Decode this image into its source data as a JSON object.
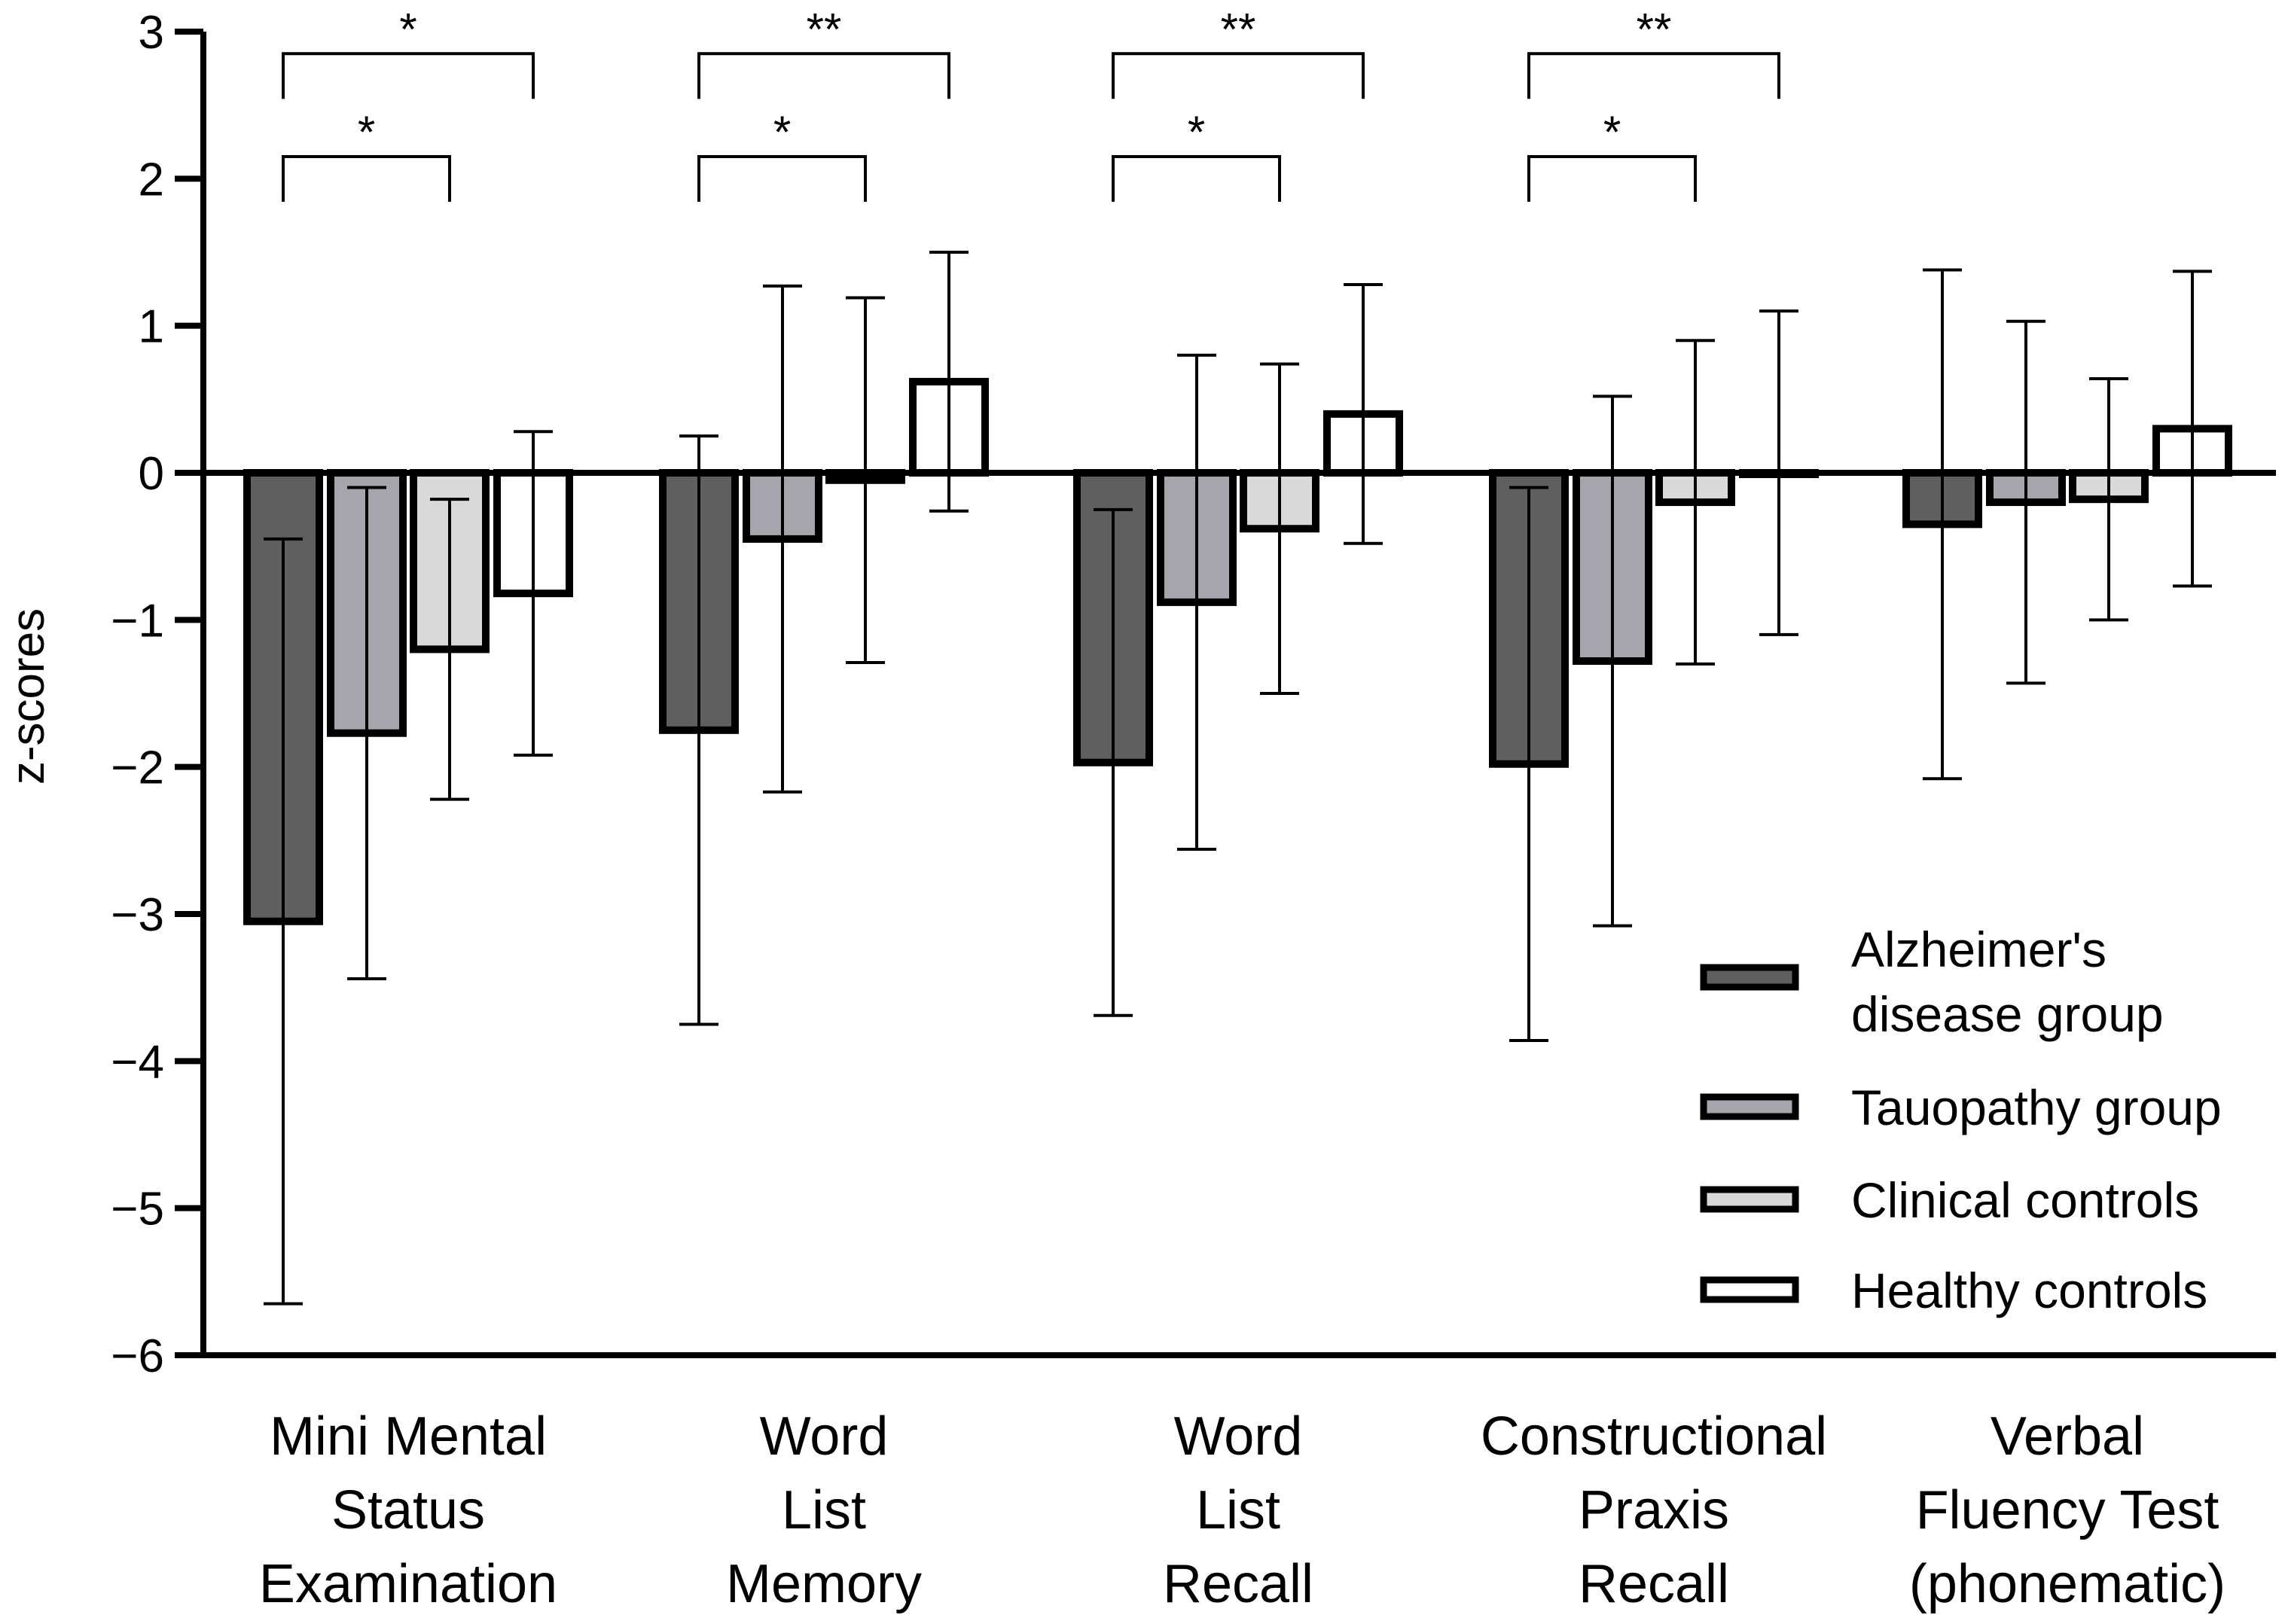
{
  "chart_data": {
    "type": "bar",
    "title": "",
    "xlabel": "",
    "ylabel": "z-scores",
    "ylim": [
      -6,
      3
    ],
    "yticks": [
      3,
      2,
      1,
      0,
      -1,
      -2,
      -3,
      -4,
      -5,
      -6
    ],
    "ytick_labels": [
      "3",
      "2",
      "1",
      "0",
      "−1",
      "−2",
      "−3",
      "−4",
      "−5",
      "−6"
    ],
    "categories": [
      [
        "Mini Mental",
        "Status",
        "Examination"
      ],
      [
        "Word",
        "List",
        "Memory"
      ],
      [
        "Word",
        "List",
        "Recall"
      ],
      [
        "Constructional",
        "Praxis",
        "Recall"
      ],
      [
        "Verbal",
        "Fluency Test",
        "(phonematic)"
      ]
    ],
    "series": [
      {
        "name": "Alzheimer's disease group",
        "legend_lines": [
          "Alzheimer's",
          "disease group"
        ],
        "color": "#5f5f5f",
        "values": [
          -3.05,
          -1.75,
          -1.97,
          -1.98,
          -0.35
        ],
        "error": [
          2.6,
          2.0,
          1.72,
          1.88,
          1.73
        ]
      },
      {
        "name": "Tauopathy group",
        "legend_lines": [
          "Tauopathy group"
        ],
        "color": "#a6a5ab",
        "values": [
          -1.77,
          -0.45,
          -0.88,
          -1.28,
          -0.2
        ],
        "error": [
          1.67,
          1.72,
          1.68,
          1.8,
          1.23
        ]
      },
      {
        "name": "Clinical controls",
        "legend_lines": [
          "Clinical controls"
        ],
        "color": "#d9d9d9",
        "values": [
          -1.2,
          -0.05,
          -0.38,
          -0.2,
          -0.18
        ],
        "error": [
          1.02,
          1.24,
          1.12,
          1.1,
          0.82
        ]
      },
      {
        "name": "Healthy controls",
        "legend_lines": [
          "Healthy controls"
        ],
        "color": "#ffffff",
        "values": [
          -0.82,
          0.62,
          0.4,
          0.0,
          0.3
        ],
        "error": [
          1.1,
          0.88,
          0.88,
          1.1,
          1.07
        ]
      }
    ],
    "significance": [
      {
        "category": 0,
        "from_series": 0,
        "to_series": 3,
        "level": 2.85,
        "label": "*"
      },
      {
        "category": 0,
        "from_series": 0,
        "to_series": 2,
        "level": 2.15,
        "label": "*"
      },
      {
        "category": 1,
        "from_series": 0,
        "to_series": 3,
        "level": 2.85,
        "label": "**"
      },
      {
        "category": 1,
        "from_series": 0,
        "to_series": 2,
        "level": 2.15,
        "label": "*"
      },
      {
        "category": 2,
        "from_series": 0,
        "to_series": 3,
        "level": 2.85,
        "label": "**"
      },
      {
        "category": 2,
        "from_series": 0,
        "to_series": 2,
        "level": 2.15,
        "label": "*"
      },
      {
        "category": 3,
        "from_series": 0,
        "to_series": 3,
        "level": 2.85,
        "label": "**"
      },
      {
        "category": 3,
        "from_series": 0,
        "to_series": 2,
        "level": 2.15,
        "label": "*"
      }
    ],
    "legend_position": "bottom-right",
    "grid": false
  }
}
